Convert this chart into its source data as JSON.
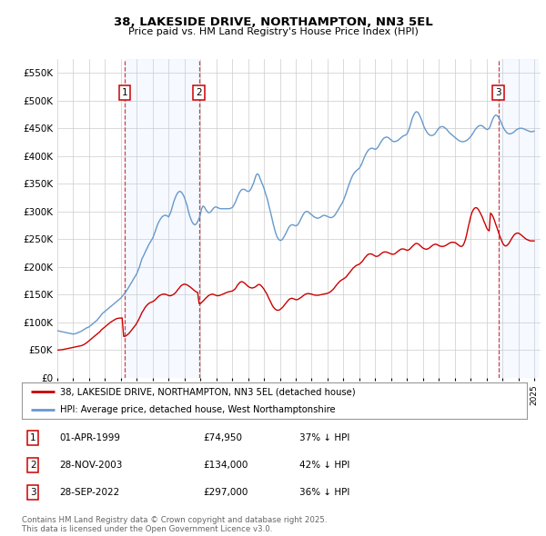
{
  "title": "38, LAKESIDE DRIVE, NORTHAMPTON, NN3 5EL",
  "subtitle": "Price paid vs. HM Land Registry's House Price Index (HPI)",
  "background_color": "#ffffff",
  "plot_bg_color": "#ffffff",
  "grid_color": "#cccccc",
  "ylim": [
    0,
    575000
  ],
  "yticks": [
    0,
    50000,
    100000,
    150000,
    200000,
    250000,
    300000,
    350000,
    400000,
    450000,
    500000,
    550000
  ],
  "ytick_labels": [
    "£0",
    "£50K",
    "£100K",
    "£150K",
    "£200K",
    "£250K",
    "£300K",
    "£350K",
    "£400K",
    "£450K",
    "£500K",
    "£550K"
  ],
  "sale_dates_num": [
    1999.25,
    2003.91,
    2022.74
  ],
  "sale_prices": [
    74950,
    134000,
    297000
  ],
  "sale_labels": [
    "1",
    "2",
    "3"
  ],
  "sale_color": "#cc0000",
  "hpi_color": "#6699cc",
  "vline_color": "#cc4444",
  "legend_label_red": "38, LAKESIDE DRIVE, NORTHAMPTON, NN3 5EL (detached house)",
  "legend_label_blue": "HPI: Average price, detached house, West Northamptonshire",
  "annotations": [
    {
      "num": "1",
      "date": "01-APR-1999",
      "price": "£74,950",
      "hpi": "37% ↓ HPI"
    },
    {
      "num": "2",
      "date": "28-NOV-2003",
      "price": "£134,000",
      "hpi": "42% ↓ HPI"
    },
    {
      "num": "3",
      "date": "28-SEP-2022",
      "price": "£297,000",
      "hpi": "36% ↓ HPI"
    }
  ],
  "footer": "Contains HM Land Registry data © Crown copyright and database right 2025.\nThis data is licensed under the Open Government Licence v3.0.",
  "hpi_years": [
    1995.0,
    1995.08,
    1995.17,
    1995.25,
    1995.33,
    1995.42,
    1995.5,
    1995.58,
    1995.67,
    1995.75,
    1995.83,
    1995.92,
    1996.0,
    1996.08,
    1996.17,
    1996.25,
    1996.33,
    1996.42,
    1996.5,
    1996.58,
    1996.67,
    1996.75,
    1996.83,
    1996.92,
    1997.0,
    1997.08,
    1997.17,
    1997.25,
    1997.33,
    1997.42,
    1997.5,
    1997.58,
    1997.67,
    1997.75,
    1997.83,
    1997.92,
    1998.0,
    1998.08,
    1998.17,
    1998.25,
    1998.33,
    1998.42,
    1998.5,
    1998.58,
    1998.67,
    1998.75,
    1998.83,
    1998.92,
    1999.0,
    1999.08,
    1999.17,
    1999.25,
    1999.33,
    1999.42,
    1999.5,
    1999.58,
    1999.67,
    1999.75,
    1999.83,
    1999.92,
    2000.0,
    2000.08,
    2000.17,
    2000.25,
    2000.33,
    2000.42,
    2000.5,
    2000.58,
    2000.67,
    2000.75,
    2000.83,
    2000.92,
    2001.0,
    2001.08,
    2001.17,
    2001.25,
    2001.33,
    2001.42,
    2001.5,
    2001.58,
    2001.67,
    2001.75,
    2001.83,
    2001.92,
    2002.0,
    2002.08,
    2002.17,
    2002.25,
    2002.33,
    2002.42,
    2002.5,
    2002.58,
    2002.67,
    2002.75,
    2002.83,
    2002.92,
    2003.0,
    2003.08,
    2003.17,
    2003.25,
    2003.33,
    2003.42,
    2003.5,
    2003.58,
    2003.67,
    2003.75,
    2003.83,
    2003.92,
    2004.0,
    2004.08,
    2004.17,
    2004.25,
    2004.33,
    2004.42,
    2004.5,
    2004.58,
    2004.67,
    2004.75,
    2004.83,
    2004.92,
    2005.0,
    2005.08,
    2005.17,
    2005.25,
    2005.33,
    2005.42,
    2005.5,
    2005.58,
    2005.67,
    2005.75,
    2005.83,
    2005.92,
    2006.0,
    2006.08,
    2006.17,
    2006.25,
    2006.33,
    2006.42,
    2006.5,
    2006.58,
    2006.67,
    2006.75,
    2006.83,
    2006.92,
    2007.0,
    2007.08,
    2007.17,
    2007.25,
    2007.33,
    2007.42,
    2007.5,
    2007.58,
    2007.67,
    2007.75,
    2007.83,
    2007.92,
    2008.0,
    2008.08,
    2008.17,
    2008.25,
    2008.33,
    2008.42,
    2008.5,
    2008.58,
    2008.67,
    2008.75,
    2008.83,
    2008.92,
    2009.0,
    2009.08,
    2009.17,
    2009.25,
    2009.33,
    2009.42,
    2009.5,
    2009.58,
    2009.67,
    2009.75,
    2009.83,
    2009.92,
    2010.0,
    2010.08,
    2010.17,
    2010.25,
    2010.33,
    2010.42,
    2010.5,
    2010.58,
    2010.67,
    2010.75,
    2010.83,
    2010.92,
    2011.0,
    2011.08,
    2011.17,
    2011.25,
    2011.33,
    2011.42,
    2011.5,
    2011.58,
    2011.67,
    2011.75,
    2011.83,
    2011.92,
    2012.0,
    2012.08,
    2012.17,
    2012.25,
    2012.33,
    2012.42,
    2012.5,
    2012.58,
    2012.67,
    2012.75,
    2012.83,
    2012.92,
    2013.0,
    2013.08,
    2013.17,
    2013.25,
    2013.33,
    2013.42,
    2013.5,
    2013.58,
    2013.67,
    2013.75,
    2013.83,
    2013.92,
    2014.0,
    2014.08,
    2014.17,
    2014.25,
    2014.33,
    2014.42,
    2014.5,
    2014.58,
    2014.67,
    2014.75,
    2014.83,
    2014.92,
    2015.0,
    2015.08,
    2015.17,
    2015.25,
    2015.33,
    2015.42,
    2015.5,
    2015.58,
    2015.67,
    2015.75,
    2015.83,
    2015.92,
    2016.0,
    2016.08,
    2016.17,
    2016.25,
    2016.33,
    2016.42,
    2016.5,
    2016.58,
    2016.67,
    2016.75,
    2016.83,
    2016.92,
    2017.0,
    2017.08,
    2017.17,
    2017.25,
    2017.33,
    2017.42,
    2017.5,
    2017.58,
    2017.67,
    2017.75,
    2017.83,
    2017.92,
    2018.0,
    2018.08,
    2018.17,
    2018.25,
    2018.33,
    2018.42,
    2018.5,
    2018.58,
    2018.67,
    2018.75,
    2018.83,
    2018.92,
    2019.0,
    2019.08,
    2019.17,
    2019.25,
    2019.33,
    2019.42,
    2019.5,
    2019.58,
    2019.67,
    2019.75,
    2019.83,
    2019.92,
    2020.0,
    2020.08,
    2020.17,
    2020.25,
    2020.33,
    2020.42,
    2020.5,
    2020.58,
    2020.67,
    2020.75,
    2020.83,
    2020.92,
    2021.0,
    2021.08,
    2021.17,
    2021.25,
    2021.33,
    2021.42,
    2021.5,
    2021.58,
    2021.67,
    2021.75,
    2021.83,
    2021.92,
    2022.0,
    2022.08,
    2022.17,
    2022.25,
    2022.33,
    2022.42,
    2022.5,
    2022.58,
    2022.67,
    2022.75,
    2022.83,
    2022.92,
    2023.0,
    2023.08,
    2023.17,
    2023.25,
    2023.33,
    2023.42,
    2023.5,
    2023.58,
    2023.67,
    2023.75,
    2023.83,
    2023.92,
    2024.0,
    2024.08,
    2024.17,
    2024.25,
    2024.33,
    2024.42,
    2024.5,
    2024.58,
    2024.67,
    2024.75,
    2024.83,
    2024.92,
    2025.0
  ],
  "hpi_values": [
    85000,
    84500,
    84000,
    83500,
    83000,
    82500,
    82000,
    81500,
    81000,
    80500,
    80000,
    79500,
    79000,
    79500,
    80000,
    81000,
    82000,
    83000,
    84000,
    85500,
    87000,
    88500,
    90000,
    91000,
    92000,
    94000,
    96000,
    98000,
    100000,
    102000,
    104000,
    107000,
    110000,
    113000,
    116000,
    118000,
    120000,
    122000,
    124000,
    126000,
    128000,
    130000,
    132000,
    134000,
    136000,
    138000,
    140000,
    142000,
    144000,
    147000,
    150000,
    153000,
    156000,
    160000,
    164000,
    168000,
    172000,
    176000,
    180000,
    184000,
    188000,
    194000,
    200000,
    208000,
    215000,
    220000,
    225000,
    230000,
    235000,
    240000,
    244000,
    248000,
    252000,
    258000,
    265000,
    272000,
    278000,
    283000,
    287000,
    290000,
    292000,
    293000,
    293000,
    292000,
    290000,
    295000,
    302000,
    310000,
    318000,
    325000,
    330000,
    334000,
    336000,
    336000,
    334000,
    330000,
    325000,
    318000,
    310000,
    300000,
    292000,
    285000,
    280000,
    277000,
    276000,
    278000,
    282000,
    288000,
    295000,
    305000,
    310000,
    308000,
    304000,
    300000,
    298000,
    298000,
    300000,
    303000,
    306000,
    308000,
    308000,
    307000,
    306000,
    305000,
    305000,
    305000,
    305000,
    305000,
    305000,
    305000,
    305000,
    306000,
    307000,
    310000,
    315000,
    320000,
    326000,
    332000,
    336000,
    339000,
    340000,
    340000,
    339000,
    337000,
    336000,
    337000,
    340000,
    345000,
    350000,
    358000,
    365000,
    368000,
    366000,
    360000,
    354000,
    348000,
    342000,
    334000,
    326000,
    318000,
    308000,
    298000,
    288000,
    278000,
    268000,
    260000,
    254000,
    250000,
    248000,
    248000,
    250000,
    254000,
    258000,
    263000,
    268000,
    272000,
    275000,
    276000,
    276000,
    275000,
    274000,
    275000,
    278000,
    282000,
    287000,
    292000,
    296000,
    299000,
    300000,
    300000,
    298000,
    296000,
    294000,
    292000,
    290000,
    289000,
    288000,
    288000,
    289000,
    290000,
    292000,
    293000,
    293000,
    292000,
    291000,
    290000,
    289000,
    289000,
    290000,
    292000,
    295000,
    299000,
    303000,
    307000,
    311000,
    315000,
    320000,
    326000,
    333000,
    340000,
    347000,
    354000,
    360000,
    365000,
    369000,
    372000,
    374000,
    376000,
    378000,
    382000,
    387000,
    393000,
    399000,
    404000,
    408000,
    411000,
    413000,
    414000,
    414000,
    413000,
    412000,
    413000,
    416000,
    420000,
    424000,
    428000,
    431000,
    433000,
    434000,
    434000,
    433000,
    431000,
    429000,
    427000,
    426000,
    426000,
    427000,
    428000,
    430000,
    432000,
    434000,
    436000,
    437000,
    438000,
    440000,
    445000,
    452000,
    460000,
    468000,
    474000,
    478000,
    480000,
    479000,
    476000,
    471000,
    465000,
    458000,
    452000,
    447000,
    443000,
    440000,
    438000,
    437000,
    437000,
    438000,
    440000,
    443000,
    447000,
    450000,
    452000,
    453000,
    453000,
    452000,
    450000,
    448000,
    445000,
    442000,
    440000,
    438000,
    436000,
    434000,
    432000,
    430000,
    428000,
    427000,
    426000,
    426000,
    426000,
    427000,
    428000,
    430000,
    432000,
    435000,
    438000,
    442000,
    446000,
    449000,
    452000,
    454000,
    455000,
    455000,
    454000,
    452000,
    450000,
    448000,
    448000,
    450000,
    455000,
    462000,
    468000,
    472000,
    474000,
    473000,
    470000,
    466000,
    461000,
    455000,
    450000,
    446000,
    443000,
    441000,
    440000,
    440000,
    441000,
    442000,
    444000,
    446000,
    448000,
    449000,
    450000,
    450000,
    450000,
    449000,
    448000,
    447000,
    446000,
    445000,
    444000,
    444000,
    444000,
    445000
  ],
  "red_years": [
    1995.0,
    1995.08,
    1995.17,
    1995.25,
    1995.33,
    1995.42,
    1995.5,
    1995.58,
    1995.67,
    1995.75,
    1995.83,
    1995.92,
    1996.0,
    1996.08,
    1996.17,
    1996.25,
    1996.33,
    1996.42,
    1996.5,
    1996.58,
    1996.67,
    1996.75,
    1996.83,
    1996.92,
    1997.0,
    1997.08,
    1997.17,
    1997.25,
    1997.33,
    1997.42,
    1997.5,
    1997.58,
    1997.67,
    1997.75,
    1997.83,
    1997.92,
    1998.0,
    1998.08,
    1998.17,
    1998.25,
    1998.33,
    1998.42,
    1998.5,
    1998.58,
    1998.67,
    1998.75,
    1998.83,
    1998.92,
    1999.0,
    1999.08,
    1999.17,
    1999.25,
    1999.33,
    1999.42,
    1999.5,
    1999.58,
    1999.67,
    1999.75,
    1999.83,
    1999.92,
    2000.0,
    2000.08,
    2000.17,
    2000.25,
    2000.33,
    2000.42,
    2000.5,
    2000.58,
    2000.67,
    2000.75,
    2000.83,
    2000.92,
    2001.0,
    2001.08,
    2001.17,
    2001.25,
    2001.33,
    2001.42,
    2001.5,
    2001.58,
    2001.67,
    2001.75,
    2001.83,
    2001.92,
    2002.0,
    2002.08,
    2002.17,
    2002.25,
    2002.33,
    2002.42,
    2002.5,
    2002.58,
    2002.67,
    2002.75,
    2002.83,
    2002.92,
    2003.0,
    2003.08,
    2003.17,
    2003.25,
    2003.33,
    2003.42,
    2003.5,
    2003.58,
    2003.67,
    2003.75,
    2003.83,
    2003.92,
    2004.0,
    2004.08,
    2004.17,
    2004.25,
    2004.33,
    2004.42,
    2004.5,
    2004.58,
    2004.67,
    2004.75,
    2004.83,
    2004.92,
    2005.0,
    2005.08,
    2005.17,
    2005.25,
    2005.33,
    2005.42,
    2005.5,
    2005.58,
    2005.67,
    2005.75,
    2005.83,
    2005.92,
    2006.0,
    2006.08,
    2006.17,
    2006.25,
    2006.33,
    2006.42,
    2006.5,
    2006.58,
    2006.67,
    2006.75,
    2006.83,
    2006.92,
    2007.0,
    2007.08,
    2007.17,
    2007.25,
    2007.33,
    2007.42,
    2007.5,
    2007.58,
    2007.67,
    2007.75,
    2007.83,
    2007.92,
    2008.0,
    2008.08,
    2008.17,
    2008.25,
    2008.33,
    2008.42,
    2008.5,
    2008.58,
    2008.67,
    2008.75,
    2008.83,
    2008.92,
    2009.0,
    2009.08,
    2009.17,
    2009.25,
    2009.33,
    2009.42,
    2009.5,
    2009.58,
    2009.67,
    2009.75,
    2009.83,
    2009.92,
    2010.0,
    2010.08,
    2010.17,
    2010.25,
    2010.33,
    2010.42,
    2010.5,
    2010.58,
    2010.67,
    2010.75,
    2010.83,
    2010.92,
    2011.0,
    2011.08,
    2011.17,
    2011.25,
    2011.33,
    2011.42,
    2011.5,
    2011.58,
    2011.67,
    2011.75,
    2011.83,
    2011.92,
    2012.0,
    2012.08,
    2012.17,
    2012.25,
    2012.33,
    2012.42,
    2012.5,
    2012.58,
    2012.67,
    2012.75,
    2012.83,
    2012.92,
    2013.0,
    2013.08,
    2013.17,
    2013.25,
    2013.33,
    2013.42,
    2013.5,
    2013.58,
    2013.67,
    2013.75,
    2013.83,
    2013.92,
    2014.0,
    2014.08,
    2014.17,
    2014.25,
    2014.33,
    2014.42,
    2014.5,
    2014.58,
    2014.67,
    2014.75,
    2014.83,
    2014.92,
    2015.0,
    2015.08,
    2015.17,
    2015.25,
    2015.33,
    2015.42,
    2015.5,
    2015.58,
    2015.67,
    2015.75,
    2015.83,
    2015.92,
    2016.0,
    2016.08,
    2016.17,
    2016.25,
    2016.33,
    2016.42,
    2016.5,
    2016.58,
    2016.67,
    2016.75,
    2016.83,
    2016.92,
    2017.0,
    2017.08,
    2017.17,
    2017.25,
    2017.33,
    2017.42,
    2017.5,
    2017.58,
    2017.67,
    2017.75,
    2017.83,
    2017.92,
    2018.0,
    2018.08,
    2018.17,
    2018.25,
    2018.33,
    2018.42,
    2018.5,
    2018.58,
    2018.67,
    2018.75,
    2018.83,
    2018.92,
    2019.0,
    2019.08,
    2019.17,
    2019.25,
    2019.33,
    2019.42,
    2019.5,
    2019.58,
    2019.67,
    2019.75,
    2019.83,
    2019.92,
    2020.0,
    2020.08,
    2020.17,
    2020.25,
    2020.33,
    2020.42,
    2020.5,
    2020.58,
    2020.67,
    2020.75,
    2020.83,
    2020.92,
    2021.0,
    2021.08,
    2021.17,
    2021.25,
    2021.33,
    2021.42,
    2021.5,
    2021.58,
    2021.67,
    2021.75,
    2021.83,
    2021.92,
    2022.0,
    2022.08,
    2022.17,
    2022.25,
    2022.33,
    2022.42,
    2022.5,
    2022.58,
    2022.67,
    2022.75,
    2022.83,
    2022.92,
    2023.0,
    2023.08,
    2023.17,
    2023.25,
    2023.33,
    2023.42,
    2023.5,
    2023.58,
    2023.67,
    2023.75,
    2023.83,
    2023.92,
    2024.0,
    2024.08,
    2024.17,
    2024.25,
    2024.33,
    2024.42,
    2024.5,
    2024.58,
    2024.67,
    2024.75,
    2024.83,
    2024.92,
    2025.0
  ],
  "red_values": [
    50000,
    50200,
    50400,
    50700,
    51000,
    51500,
    52000,
    52500,
    53000,
    53500,
    54000,
    54500,
    55000,
    55500,
    56000,
    56500,
    57000,
    57500,
    58000,
    59000,
    60000,
    61500,
    63000,
    65000,
    67000,
    69000,
    71000,
    73000,
    75000,
    77000,
    79000,
    81000,
    83000,
    86000,
    88000,
    90000,
    92000,
    94000,
    96000,
    98000,
    100000,
    101500,
    103000,
    104500,
    106000,
    107000,
    107500,
    107800,
    107900,
    108000,
    74950,
    74950,
    76000,
    78000,
    80000,
    83000,
    86000,
    89000,
    92000,
    95000,
    99000,
    103000,
    108000,
    113000,
    118000,
    122000,
    126000,
    129000,
    132000,
    134000,
    135500,
    136500,
    137500,
    139000,
    141000,
    143500,
    146000,
    148000,
    149500,
    150500,
    151000,
    151000,
    150500,
    149500,
    148500,
    148000,
    148500,
    149500,
    151000,
    153000,
    156000,
    159000,
    162000,
    165000,
    167000,
    168500,
    169000,
    168500,
    167500,
    166000,
    164500,
    162500,
    160500,
    158500,
    156500,
    155000,
    154000,
    134000,
    134000,
    136000,
    138500,
    141000,
    143500,
    146000,
    148000,
    149500,
    150500,
    151000,
    150500,
    149500,
    148500,
    148000,
    148500,
    149000,
    150000,
    151000,
    152000,
    153000,
    154000,
    155000,
    155500,
    156000,
    156500,
    158000,
    160000,
    163000,
    167000,
    170000,
    172500,
    173500,
    173000,
    171500,
    169500,
    167000,
    165000,
    163500,
    162500,
    162000,
    162500,
    163500,
    165000,
    167000,
    168500,
    168000,
    166000,
    163000,
    160000,
    156000,
    152000,
    147000,
    142000,
    137000,
    132000,
    128000,
    125000,
    123000,
    122000,
    122000,
    123000,
    125000,
    127000,
    130000,
    133000,
    136000,
    139000,
    141500,
    143000,
    143500,
    143000,
    142000,
    141000,
    141000,
    142000,
    143500,
    145000,
    147000,
    149000,
    150500,
    151500,
    152000,
    152000,
    151500,
    151000,
    150000,
    149500,
    149000,
    149000,
    149000,
    149500,
    150000,
    150500,
    151000,
    151500,
    152000,
    152500,
    153500,
    155000,
    157000,
    159000,
    162000,
    165000,
    168000,
    171000,
    173500,
    175500,
    177000,
    178500,
    180000,
    182000,
    185000,
    188000,
    191000,
    194000,
    197000,
    199500,
    201500,
    203000,
    204000,
    205000,
    207000,
    209500,
    212500,
    216000,
    219000,
    221500,
    223000,
    223500,
    223500,
    222500,
    221000,
    219500,
    219000,
    219500,
    221000,
    223000,
    225000,
    226500,
    227000,
    227000,
    226500,
    225500,
    224500,
    223500,
    223000,
    223000,
    224000,
    226000,
    228000,
    230000,
    231500,
    232500,
    232500,
    232000,
    231000,
    230000,
    230500,
    232000,
    234500,
    237000,
    239500,
    241500,
    242500,
    242000,
    240500,
    238500,
    236000,
    234000,
    233000,
    232000,
    232000,
    233000,
    234500,
    236500,
    238500,
    240000,
    241000,
    241000,
    240000,
    238500,
    237500,
    237000,
    237000,
    237500,
    238500,
    240000,
    241500,
    243000,
    244000,
    244500,
    244500,
    244000,
    243000,
    241000,
    239000,
    237500,
    237000,
    238000,
    242000,
    249000,
    258000,
    269000,
    280000,
    290000,
    298000,
    303000,
    306000,
    307000,
    306000,
    303000,
    299000,
    294000,
    289000,
    283000,
    277000,
    271000,
    267000,
    265000,
    297000,
    295000,
    290000,
    284000,
    277000,
    270000,
    263000,
    256000,
    250000,
    244000,
    240000,
    238000,
    238000,
    240000,
    243000,
    247000,
    251000,
    255000,
    258000,
    260000,
    261000,
    261000,
    260000,
    258000,
    256000,
    254000,
    252000,
    250000,
    249000,
    248000,
    247000,
    247000,
    247000,
    247000
  ]
}
